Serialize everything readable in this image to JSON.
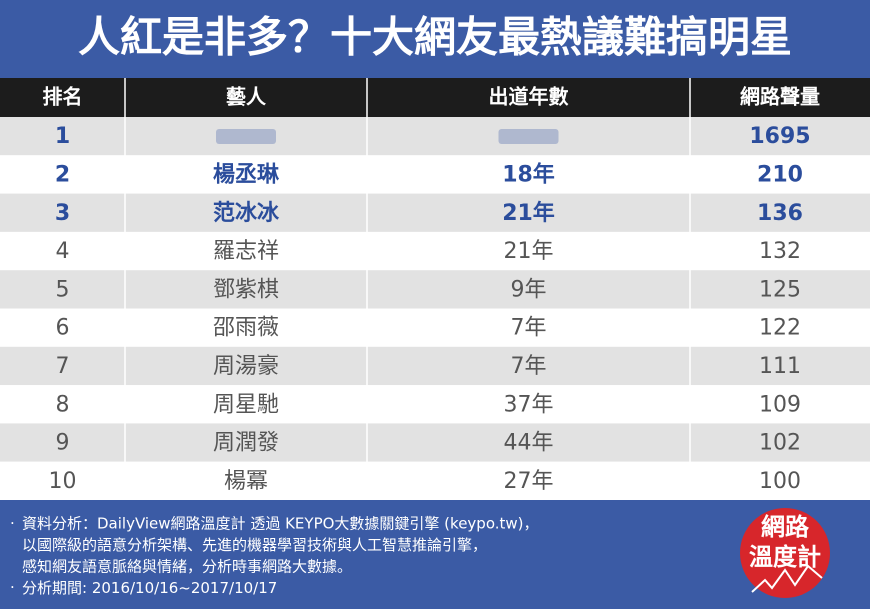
{
  "title": "人紅是非多？十大網友最熱議難搞明星",
  "table": {
    "headers": [
      "排名",
      "藝人",
      "出道年數",
      "網路聲量"
    ],
    "rows": [
      {
        "rank": 1,
        "volume": 1695
      },
      {
        "rank": 2,
        "name": "楊丞琳",
        "years": "18年",
        "volume": 210
      },
      {
        "rank": 3,
        "name": "范冰冰",
        "years": "21年",
        "volume": 136
      },
      {
        "rank": 4,
        "name": "羅志祥",
        "years": "21年",
        "volume": 132
      },
      {
        "rank": 5,
        "name": "鄧紫棋",
        "years": "9年",
        "volume": 125
      },
      {
        "rank": 6,
        "name": "邵雨薇",
        "years": "7年",
        "volume": 122
      },
      {
        "rank": 7,
        "name": "周湯豪",
        "years": "7年",
        "volume": 111
      },
      {
        "rank": 8,
        "name": "周星馳",
        "years": "37年",
        "volume": 109
      },
      {
        "rank": 9,
        "name": "周潤發",
        "years": "44年",
        "volume": 102
      },
      {
        "rank": 10,
        "name": "楊冪",
        "years": "27年",
        "volume": 100
      }
    ]
  },
  "footer": {
    "lines": [
      "資料分析：DailyView網路溫度計 透過 KEYPO大數據關鍵引擎 (keypo.tw)，",
      "以國際級的語意分析架構、先進的機器學習技術與人工智慧推論引擎，",
      "感知網友語意脈絡與情緒，分析時事網路大數據。",
      "分析期間: 2016/10/16~2017/10/17"
    ],
    "logo": [
      "網路",
      "溫度計"
    ]
  }
}
